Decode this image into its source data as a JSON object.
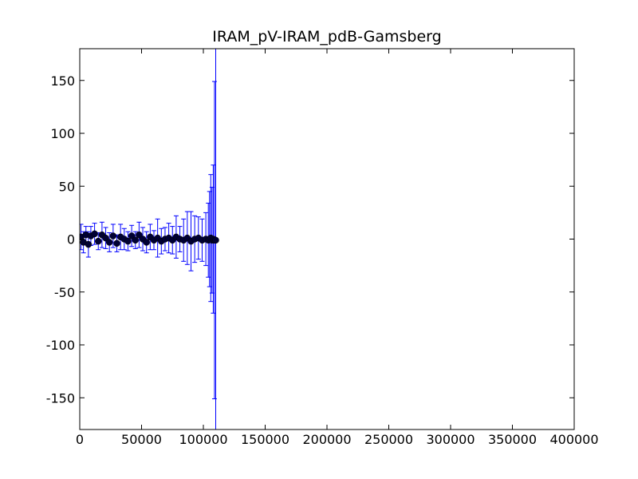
{
  "chart_data": {
    "type": "scatter",
    "title": "IRAM_pV-IRAM_pdB-Gamsberg",
    "x": [
      1000,
      3000,
      5000,
      7000,
      9000,
      12000,
      15000,
      18000,
      21000,
      24000,
      27000,
      30000,
      33000,
      36000,
      39000,
      42000,
      45000,
      48000,
      51000,
      54000,
      57000,
      60000,
      63000,
      66000,
      69000,
      72000,
      75000,
      78000,
      81000,
      84000,
      87000,
      90000,
      93000,
      96000,
      99000,
      102000,
      104000,
      105000,
      106000,
      107000,
      108000,
      109000,
      110000
    ],
    "series": [
      {
        "color": "#0000ff",
        "marker_color": "#000033",
        "values": [
          2,
          -3,
          4,
          -5,
          3,
          5,
          -2,
          4,
          1,
          -3,
          3,
          -4,
          2,
          0,
          -2,
          3,
          -1,
          4,
          0,
          -3,
          2,
          -1,
          1,
          -2,
          0,
          1,
          -1,
          2,
          0,
          -1,
          1,
          -2,
          0,
          1,
          -1,
          0,
          -1,
          0,
          1,
          -1,
          0,
          -1,
          -1
        ],
        "errors": [
          12,
          10,
          8,
          12,
          9,
          10,
          8,
          12,
          10,
          9,
          11,
          8,
          12,
          10,
          9,
          10,
          8,
          12,
          11,
          10,
          12,
          9,
          18,
          12,
          11,
          14,
          13,
          20,
          12,
          20,
          25,
          28,
          22,
          20,
          20,
          25,
          35,
          45,
          60,
          50,
          70,
          150,
          185
        ]
      }
    ],
    "xlim": [
      0,
      400000
    ],
    "ylim": [
      -180,
      180
    ],
    "xticks": [
      0,
      50000,
      100000,
      150000,
      200000,
      250000,
      300000,
      350000,
      400000
    ],
    "yticks": [
      -150,
      -100,
      -50,
      0,
      50,
      100,
      150
    ]
  }
}
